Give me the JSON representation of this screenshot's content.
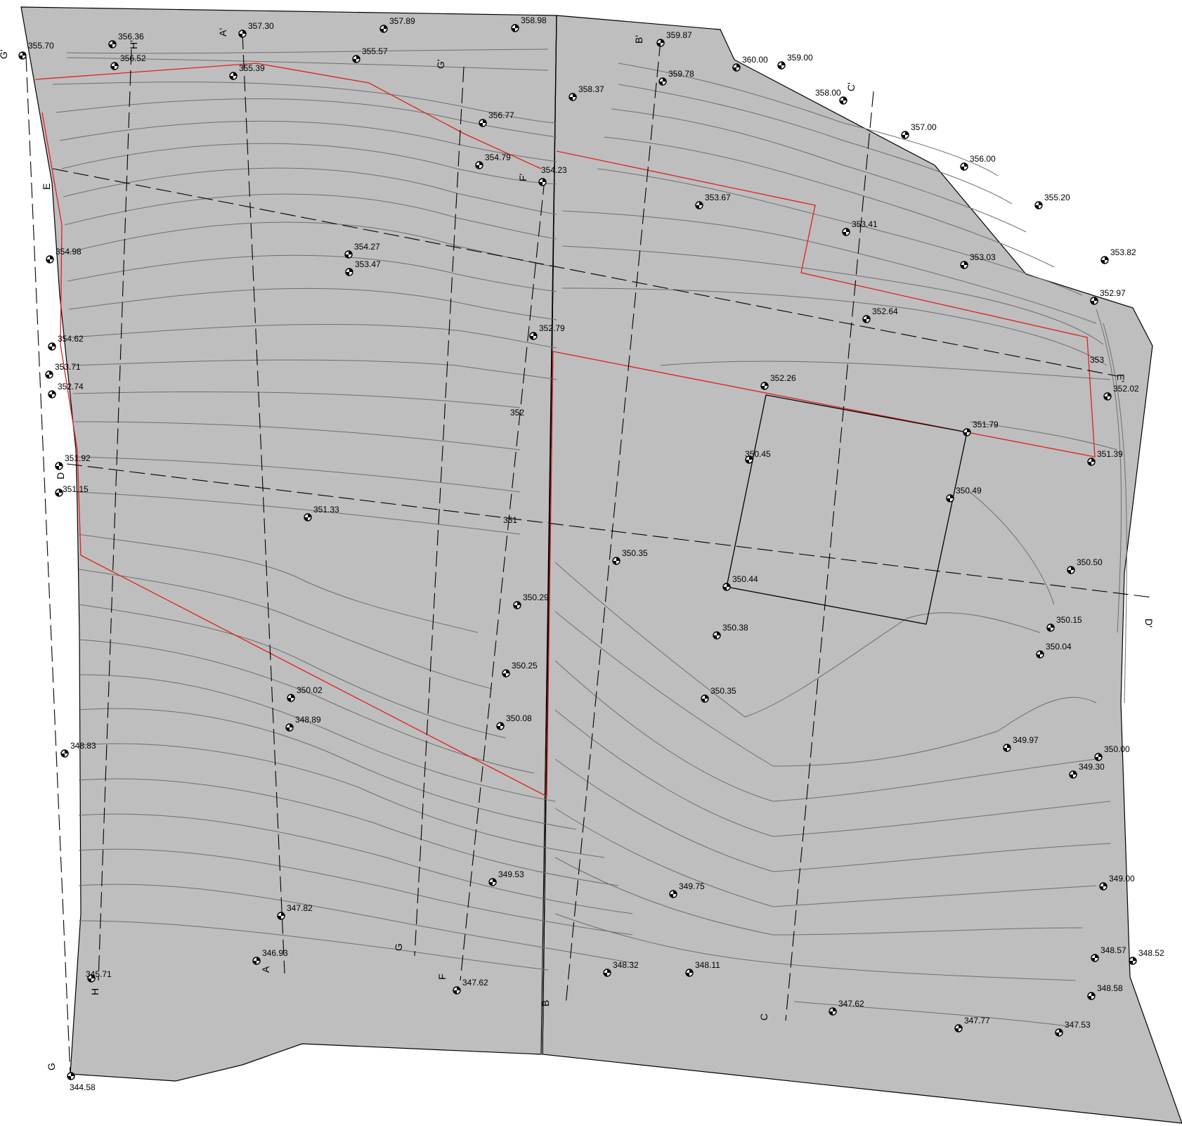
{
  "map": {
    "colors": {
      "terrain": "#bebebe",
      "outline": "#000000",
      "contour": "#6e6e6e",
      "boundary": "#e02020"
    },
    "contour_labels": [
      "353",
      "352",
      "351"
    ],
    "section_labels": [
      "A",
      "A'",
      "B",
      "B'",
      "C",
      "C'",
      "D",
      "D'",
      "E",
      "E'",
      "F",
      "F'",
      "G",
      "G'",
      "G",
      "G'",
      "H",
      "H'"
    ],
    "spot_elevations": [
      "355.70",
      "356.36",
      "356.52",
      "357.30",
      "355.39",
      "357.89",
      "355.57",
      "358.98",
      "356.77",
      "354.79",
      "354.23",
      "358.37",
      "359.87",
      "359.78",
      "360.00",
      "359.00",
      "358.00",
      "357.00",
      "356.00",
      "355.20",
      "353.82",
      "353.67",
      "353.41",
      "353.03",
      "352.97",
      "352.64",
      "354.98",
      "354.27",
      "353.47",
      "354.62",
      "353.71",
      "352.74",
      "352.79",
      "352.26",
      "352.02",
      "351.79",
      "351.39",
      "351.92",
      "351.15",
      "350.45",
      "350.49",
      "351.33",
      "350.35",
      "350.44",
      "350.50",
      "350.29",
      "350.15",
      "350.38",
      "350.04",
      "350.25",
      "350.02",
      "350.35",
      "350.08",
      "348.89",
      "349.97",
      "350.00",
      "349.30",
      "348.83",
      "349.53",
      "349.75",
      "349.00",
      "347.82",
      "346.93",
      "348.32",
      "348.11",
      "348.57",
      "348.52",
      "345.71",
      "347.62",
      "348.58",
      "347.62",
      "347.77",
      "347.53",
      "344.58"
    ]
  }
}
